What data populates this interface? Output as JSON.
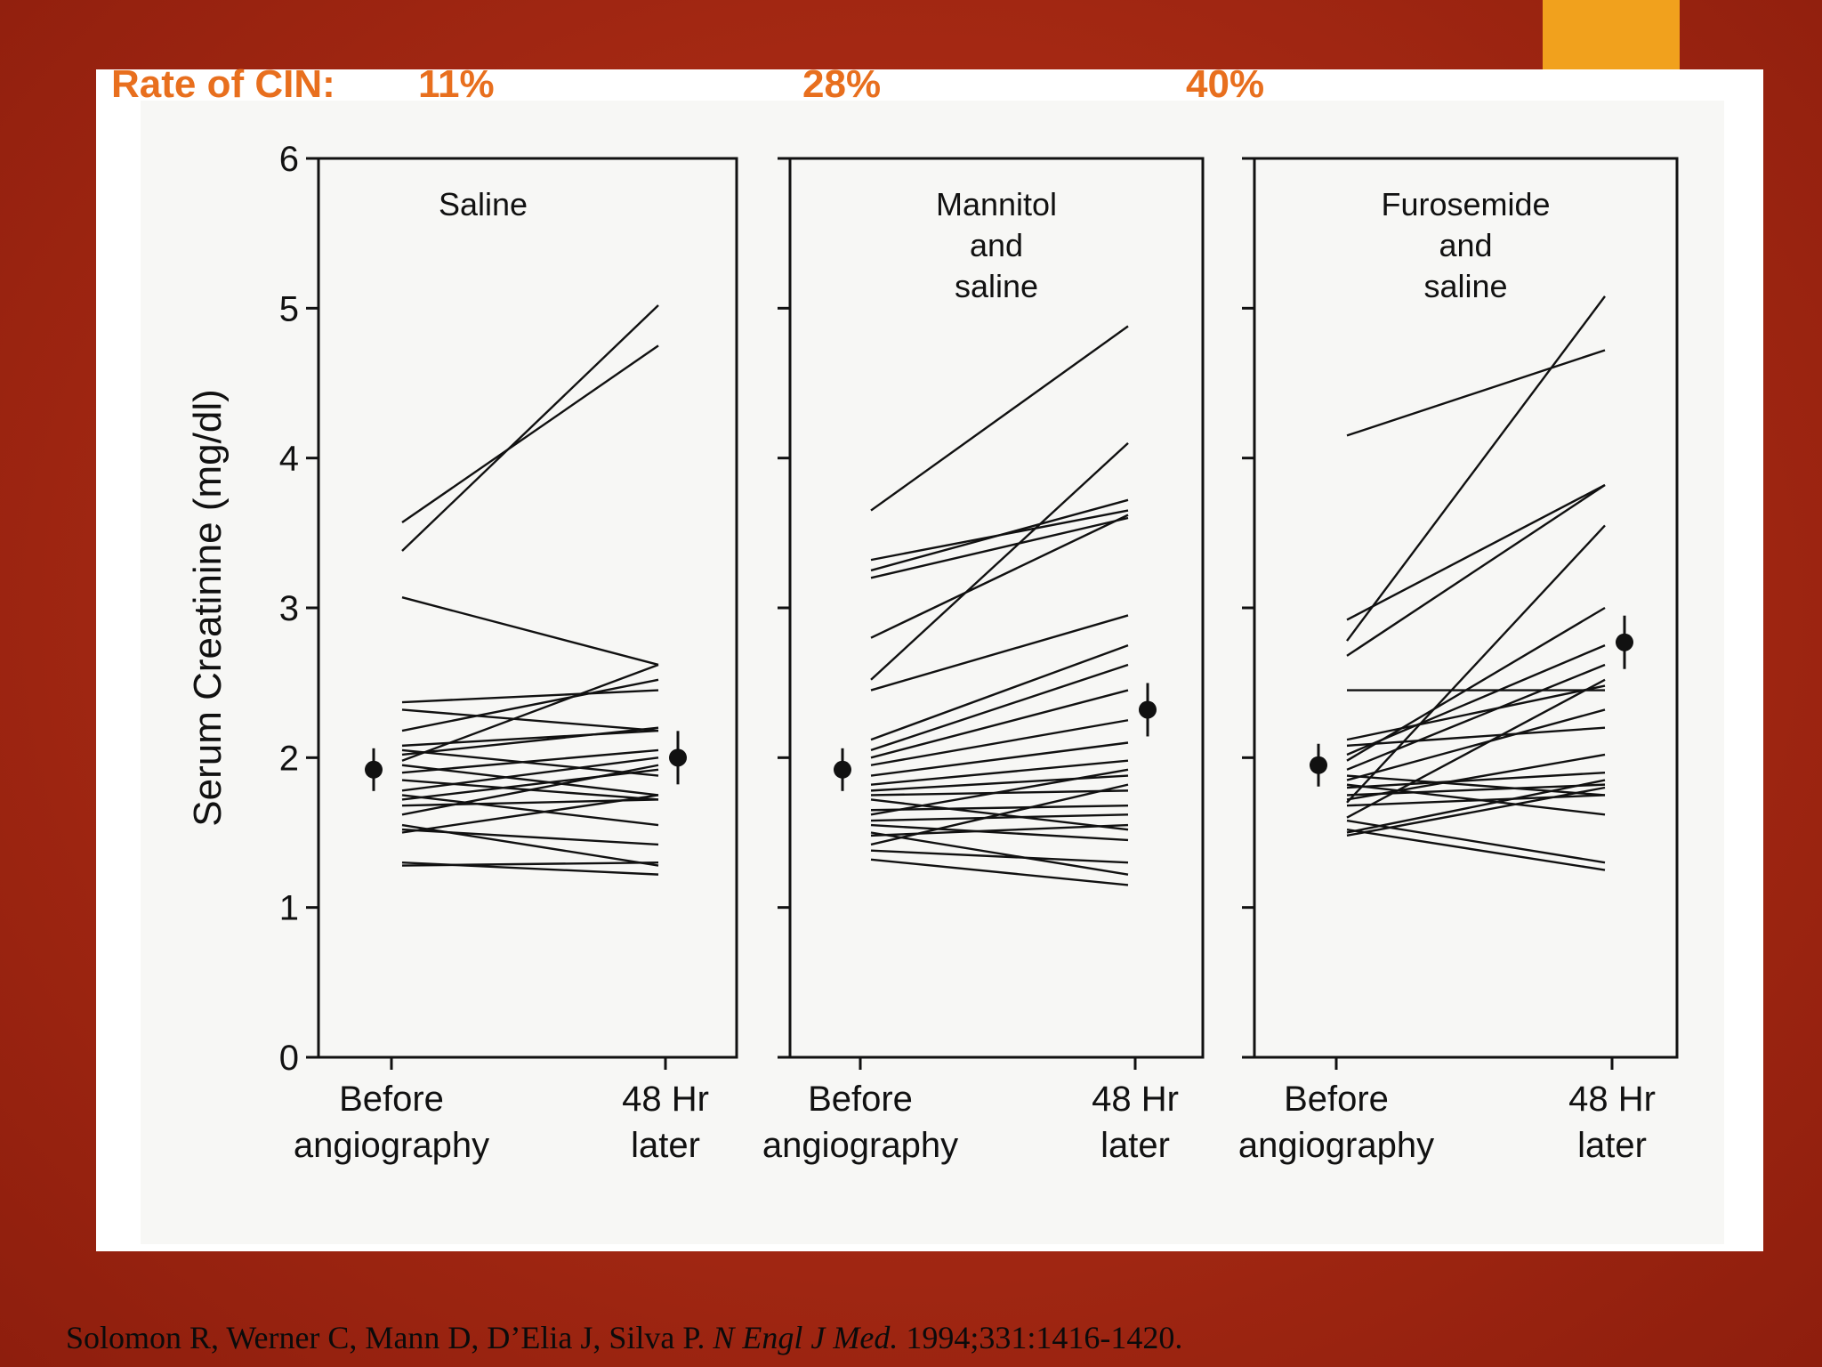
{
  "slide": {
    "cin_prefix": "Rate of CIN:",
    "cin_rates": [
      "11%",
      "28%",
      "40%"
    ],
    "citation_authors": "Solomon R, Werner C, Mann D, D’Elia J, Silva P.",
    "citation_journal": "N Engl J Med.",
    "citation_ref": "1994;331:1416-1420.",
    "colors": {
      "accent": "#f1a11d",
      "cin_text": "#e86f1e",
      "background": "#b0301a"
    }
  },
  "chart_data": {
    "type": "line",
    "ylabel": "Serum Creatinine (mg/dl)",
    "ylim": [
      0,
      6
    ],
    "yticks": [
      "0",
      "1",
      "2",
      "3",
      "4",
      "5",
      "6"
    ],
    "x_categories": [
      [
        "Before",
        "angiography"
      ],
      [
        "48 Hr",
        "later"
      ]
    ],
    "panels": [
      {
        "title": [
          "Saline"
        ],
        "mean_before": 1.92,
        "mean_after": 2.0,
        "lines": [
          [
            3.57,
            4.75
          ],
          [
            3.38,
            5.02
          ],
          [
            3.07,
            2.62
          ],
          [
            2.37,
            2.45
          ],
          [
            2.32,
            2.18
          ],
          [
            2.18,
            2.52
          ],
          [
            2.08,
            2.18
          ],
          [
            2.05,
            1.88
          ],
          [
            2.02,
            2.2
          ],
          [
            1.98,
            2.62
          ],
          [
            1.95,
            1.75
          ],
          [
            1.9,
            2.05
          ],
          [
            1.85,
            1.72
          ],
          [
            1.78,
            2.0
          ],
          [
            1.75,
            1.55
          ],
          [
            1.72,
            1.92
          ],
          [
            1.68,
            1.72
          ],
          [
            1.62,
            1.95
          ],
          [
            1.55,
            1.28
          ],
          [
            1.52,
            1.42
          ],
          [
            1.5,
            1.75
          ],
          [
            1.3,
            1.22
          ],
          [
            1.28,
            1.3
          ]
        ]
      },
      {
        "title": [
          "Mannitol",
          "and",
          "saline"
        ],
        "mean_before": 1.92,
        "mean_after": 2.32,
        "lines": [
          [
            3.65,
            4.88
          ],
          [
            3.32,
            3.65
          ],
          [
            3.25,
            3.72
          ],
          [
            3.2,
            3.6
          ],
          [
            2.8,
            3.62
          ],
          [
            2.52,
            4.1
          ],
          [
            2.45,
            2.95
          ],
          [
            2.12,
            2.75
          ],
          [
            2.05,
            2.62
          ],
          [
            2.0,
            2.45
          ],
          [
            1.95,
            2.25
          ],
          [
            1.88,
            2.1
          ],
          [
            1.82,
            1.98
          ],
          [
            1.78,
            1.88
          ],
          [
            1.75,
            1.78
          ],
          [
            1.72,
            1.52
          ],
          [
            1.65,
            1.68
          ],
          [
            1.62,
            1.92
          ],
          [
            1.58,
            1.62
          ],
          [
            1.55,
            1.45
          ],
          [
            1.5,
            1.22
          ],
          [
            1.48,
            1.55
          ],
          [
            1.42,
            1.82
          ],
          [
            1.38,
            1.3
          ],
          [
            1.32,
            1.15
          ]
        ]
      },
      {
        "title": [
          "Furosemide",
          "and",
          "saline"
        ],
        "mean_before": 1.95,
        "mean_after": 2.77,
        "lines": [
          [
            4.15,
            4.72
          ],
          [
            2.92,
            3.82
          ],
          [
            2.78,
            5.08
          ],
          [
            2.68,
            3.82
          ],
          [
            2.45,
            2.45
          ],
          [
            2.12,
            2.48
          ],
          [
            2.08,
            2.2
          ],
          [
            2.02,
            2.75
          ],
          [
            1.98,
            3.0
          ],
          [
            1.92,
            2.62
          ],
          [
            1.88,
            1.75
          ],
          [
            1.85,
            2.32
          ],
          [
            1.82,
            1.62
          ],
          [
            1.8,
            1.9
          ],
          [
            1.75,
            1.82
          ],
          [
            1.72,
            2.02
          ],
          [
            1.7,
            3.55
          ],
          [
            1.68,
            1.75
          ],
          [
            1.6,
            2.52
          ],
          [
            1.58,
            1.3
          ],
          [
            1.52,
            1.25
          ],
          [
            1.5,
            1.85
          ],
          [
            1.48,
            1.8
          ]
        ]
      }
    ]
  }
}
